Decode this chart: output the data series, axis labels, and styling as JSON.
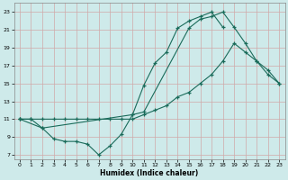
{
  "xlabel": "Humidex (Indice chaleur)",
  "xlim": [
    -0.5,
    23.5
  ],
  "ylim": [
    6.5,
    24.0
  ],
  "xticks": [
    0,
    1,
    2,
    3,
    4,
    5,
    6,
    7,
    8,
    9,
    10,
    11,
    12,
    13,
    14,
    15,
    16,
    17,
    18,
    19,
    20,
    21,
    22,
    23
  ],
  "yticks": [
    7,
    9,
    11,
    13,
    15,
    17,
    19,
    21,
    23
  ],
  "background_color": "#ceeaea",
  "grid_color": "#d0a8a8",
  "line_color": "#1a6b5a",
  "line1_x": [
    0,
    1,
    2,
    3,
    4,
    5,
    6,
    7,
    8,
    9,
    10,
    11,
    12,
    13,
    14,
    15,
    16,
    17,
    18
  ],
  "line1_y": [
    11,
    11,
    10,
    8.8,
    8.5,
    8.5,
    8.2,
    7,
    8,
    9.3,
    11.5,
    14.8,
    17.3,
    18.5,
    21.2,
    22,
    22.5,
    23,
    21.3
  ],
  "line2_x": [
    0,
    1,
    2,
    3,
    4,
    5,
    6,
    7,
    8,
    9,
    10,
    11,
    12,
    13,
    14,
    15,
    16,
    17,
    18,
    19,
    20,
    21,
    22,
    23
  ],
  "line2_y": [
    11,
    11,
    11,
    11,
    11,
    11,
    11,
    11,
    11,
    11,
    11,
    11.5,
    12.0,
    12.5,
    13.5,
    14.0,
    15.0,
    16.0,
    17.5,
    19.5,
    18.5,
    17.5,
    16.5,
    15
  ],
  "line3_x": [
    0,
    2,
    10,
    11,
    15,
    16,
    17,
    18,
    19,
    20,
    21,
    22,
    23
  ],
  "line3_y": [
    11,
    10,
    11.5,
    11.8,
    21.2,
    22.2,
    22.5,
    23,
    21.3,
    19.5,
    17.5,
    16,
    15
  ],
  "figsize": [
    3.2,
    2.0
  ],
  "dpi": 100
}
